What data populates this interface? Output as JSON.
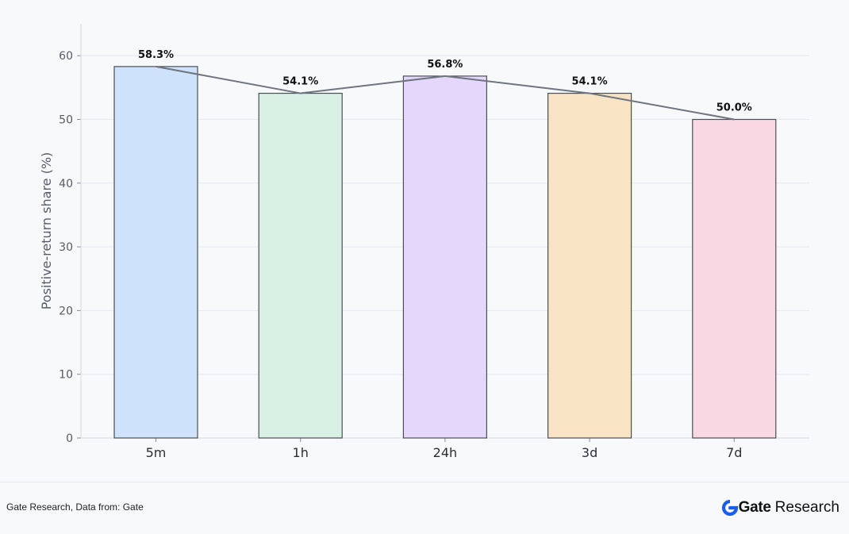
{
  "chart_data": {
    "type": "bar",
    "categories": [
      "5m",
      "1h",
      "24h",
      "3d",
      "7d"
    ],
    "values": [
      58.3,
      54.1,
      56.8,
      54.1,
      50.0
    ],
    "data_labels": [
      "58.3%",
      "54.1%",
      "56.8%",
      "54.1%",
      "50.0%"
    ],
    "bar_colors": [
      "#cfe2fb",
      "#d9f1e5",
      "#e4d7fb",
      "#f8e3c4",
      "#f9d7e3"
    ],
    "bar_edge_color": "#4a4f57",
    "line_overlay": true,
    "line_color": "#6e7480",
    "title": "",
    "xlabel": "",
    "ylabel": "Positive-return share (%)",
    "ylim": [
      0,
      65
    ],
    "yticks": [
      0,
      10,
      20,
      30,
      40,
      50,
      60
    ],
    "grid": true,
    "legend": "none"
  },
  "footer": {
    "source": "Gate Research, Data from: Gate",
    "brand_name": "Gate",
    "brand_suffix": "Research",
    "brand_color": "#1a5cf0"
  }
}
